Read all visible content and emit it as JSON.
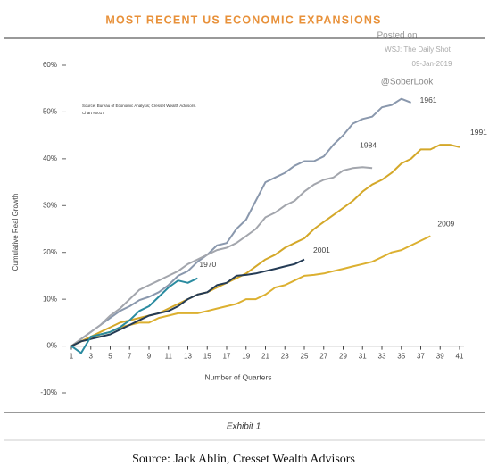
{
  "chart_data": {
    "type": "line",
    "title": "MOST RECENT US ECONOMIC EXPANSIONS",
    "watermark": [
      "Posted on",
      "WSJ: The Daily Shot",
      "09-Jan-2019",
      "@SoberLook"
    ],
    "source_note": [
      "Source: Bureau of Economic Analysis; Cresset Wealth Advisors.",
      "Chart #0017"
    ],
    "y_label": "Cumulative Real Growth",
    "x_label": "Number of Quarters",
    "exhibit": "Exhibit 1",
    "caption": "Source: Jack Ablin, Cresset Wealth Advisors",
    "xlim": [
      1,
      41
    ],
    "xticks": [
      1,
      3,
      5,
      7,
      9,
      11,
      13,
      15,
      17,
      19,
      21,
      23,
      25,
      27,
      29,
      31,
      33,
      35,
      37,
      39,
      41
    ],
    "ylim": [
      -10,
      60
    ],
    "yticks": [
      {
        "value": -10,
        "label": "-10%"
      },
      {
        "value": 0,
        "label": "0%"
      },
      {
        "value": 10,
        "label": "10%"
      },
      {
        "value": 20,
        "label": "20%"
      },
      {
        "value": 30,
        "label": "30%"
      },
      {
        "value": 40,
        "label": "40%"
      },
      {
        "value": 50,
        "label": "50%"
      },
      {
        "value": 60,
        "label": "60%"
      }
    ],
    "series": [
      {
        "name": "1961",
        "color": "#8a98ad",
        "values": [
          0,
          1.5,
          3,
          4.5,
          6,
          7.5,
          8.5,
          9.8,
          10.5,
          11.5,
          13,
          15,
          16,
          18,
          19.5,
          21.5,
          22,
          25,
          27,
          31,
          35,
          36,
          37,
          38.5,
          39.5,
          39.5,
          40.5,
          43,
          45,
          47.5,
          48.5,
          49,
          51,
          51.5,
          52.8,
          52
        ]
      },
      {
        "name": "1984",
        "color": "#a3a6ad",
        "values": [
          0,
          1.5,
          3,
          4.5,
          6.5,
          8,
          10,
          12,
          13,
          14,
          15,
          16,
          17.5,
          18.5,
          19.5,
          20.5,
          21,
          22,
          23.5,
          25,
          27.5,
          28.5,
          30,
          31,
          33,
          34.5,
          35.5,
          36,
          37.5,
          38,
          38.2,
          38
        ]
      },
      {
        "name": "1991",
        "color": "#d4a829",
        "values": [
          0,
          1,
          2,
          3,
          4,
          5,
          5.5,
          6,
          6.5,
          7,
          8,
          9,
          10,
          11,
          11.5,
          12.5,
          13.5,
          14.5,
          15.5,
          17,
          18.5,
          19.5,
          21,
          22,
          23,
          25,
          26.5,
          28,
          29.5,
          31,
          33,
          34.5,
          35.5,
          37,
          39,
          40,
          42,
          42,
          43,
          43,
          42.5
        ]
      },
      {
        "name": "2009",
        "color": "#dcb030",
        "values": [
          0,
          1,
          1.5,
          2.5,
          3,
          4,
          4.5,
          5,
          5,
          6,
          6.5,
          7,
          7,
          7,
          7.5,
          8,
          8.5,
          9,
          10,
          10,
          11,
          12.5,
          13,
          14,
          15,
          15.2,
          15.5,
          16,
          16.5,
          17,
          17.5,
          18,
          19,
          20,
          20.5,
          21.5,
          22.5,
          23.5
        ]
      },
      {
        "name": "2001",
        "color": "#243b55",
        "values": [
          0,
          1,
          1.5,
          2,
          2.5,
          3.5,
          4.5,
          5.5,
          6.5,
          7,
          7.5,
          8.5,
          10,
          11,
          11.5,
          13,
          13.5,
          15,
          15.2,
          15.5,
          16,
          16.5,
          17,
          17.5,
          18.5
        ]
      },
      {
        "name": "1970",
        "color": "#2a8ba0",
        "values": [
          0,
          -1.5,
          2,
          2.5,
          3,
          4,
          5.5,
          7.5,
          8.5,
          10.5,
          12.5,
          14,
          13.5,
          14.5
        ]
      }
    ]
  }
}
